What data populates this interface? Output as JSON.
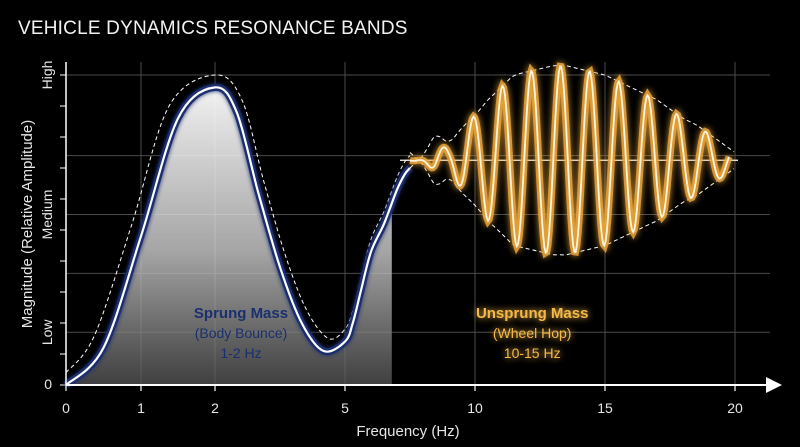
{
  "chart_data": {
    "type": "line",
    "title": "VEHICLE DYNAMICS RESONANCE BANDS",
    "xlabel": "Frequency (Hz)",
    "ylabel": "Magnitude (Relative Amplitude)",
    "xlim": [
      0,
      20
    ],
    "ylim": [
      0,
      1
    ],
    "x_ticks": [
      0,
      1,
      2,
      5,
      10,
      15,
      20
    ],
    "y_ticks": [
      {
        "label": "0",
        "value": 0.0
      },
      {
        "label": "Low",
        "value": 0.17
      },
      {
        "label": "Medium",
        "value": 0.55
      },
      {
        "label": "High",
        "value": 1.0
      }
    ],
    "grid": true,
    "series": [
      {
        "color": "#ffffff",
        "x": [
          0,
          0.5,
          1,
          1.5,
          2,
          2.5,
          3,
          3.5,
          4,
          4.5,
          5,
          5.3,
          5.6,
          6,
          6.5,
          7,
          7.3,
          7.5
        ],
        "y": [
          0.0,
          0.12,
          0.48,
          0.86,
          0.96,
          0.88,
          0.62,
          0.38,
          0.2,
          0.11,
          0.14,
          0.2,
          0.3,
          0.43,
          0.52,
          0.63,
          0.68,
          0.7
        ]
      },
      {
        "color": "#f6b94a",
        "x": [
          7.5,
          8,
          8.5,
          9,
          9.5,
          10,
          10.5,
          11,
          11.5,
          12,
          12.5,
          13,
          13.5,
          14,
          14.5,
          15,
          15.5,
          16,
          16.5,
          17,
          17.5,
          18,
          18.5,
          19,
          19.5,
          20
        ],
        "y": [
          0.7,
          0.74,
          0.81,
          0.78,
          0.83,
          0.87,
          0.92,
          0.96,
          1.0,
          1.01,
          1.02,
          1.03,
          1.03,
          1.02,
          1.01,
          1.0,
          0.98,
          0.96,
          0.94,
          0.92,
          0.89,
          0.86,
          0.84,
          0.81,
          0.78,
          0.75
        ]
      }
    ],
    "annotations": [
      {
        "lines": [
          "Sprung Mass",
          "(Body Bounce)",
          "1-2 Hz"
        ],
        "color": "#1a2f6e"
      },
      {
        "lines": [
          "Unsprung Mass",
          "(Wheel Hop)",
          "10-15 Hz"
        ],
        "color": "#f6b94a"
      }
    ]
  }
}
